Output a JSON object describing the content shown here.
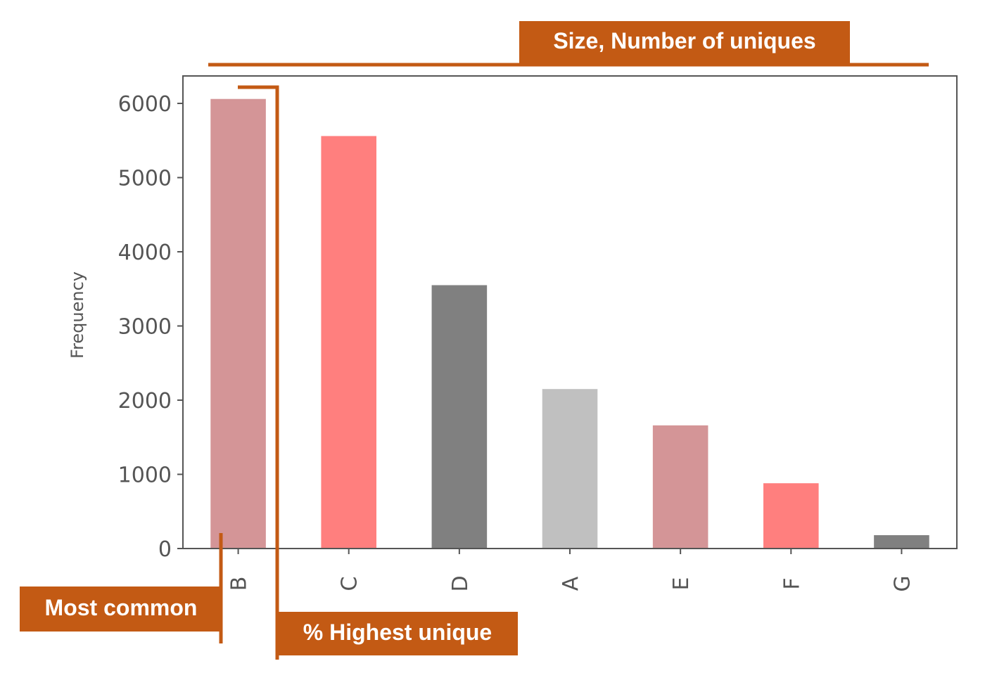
{
  "chart_data": {
    "type": "bar",
    "categories": [
      "B",
      "C",
      "D",
      "A",
      "E",
      "F",
      "G"
    ],
    "values": [
      6060,
      5560,
      3550,
      2150,
      1660,
      880,
      180
    ],
    "bar_colors": [
      "#D49597",
      "#FF7F7E",
      "#808080",
      "#C0C0C0",
      "#D49597",
      "#FF7F7E",
      "#808080"
    ],
    "ylabel": "Frequency",
    "xlabel": "",
    "ylim": [
      0,
      6370
    ],
    "yticks": [
      0,
      1000,
      2000,
      3000,
      4000,
      5000,
      6000
    ],
    "grid": false
  },
  "annotations": {
    "size_label": "Size, Number of uniques",
    "most_common_label": "Most common",
    "highest_unique_label": "% Highest unique",
    "accent_color": "#C35A14"
  }
}
